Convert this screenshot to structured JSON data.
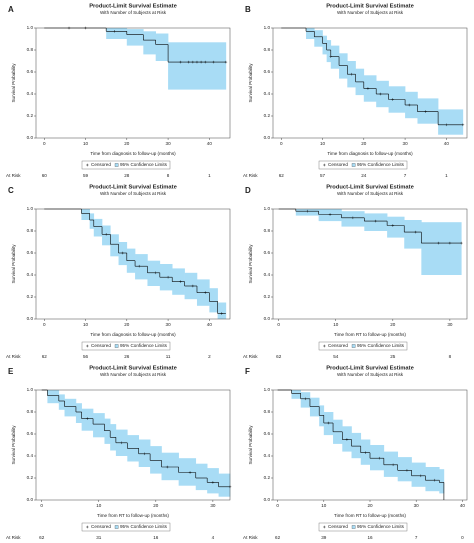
{
  "chart_data": [
    {
      "type": "km",
      "panel": "A",
      "title": "Product-Limit Survival Estimate",
      "subtitle": "With Number of Subjects at Risk",
      "x_label": "Time from diagnosis to follow-up (months)",
      "y_label": "Survival Probability",
      "legend": [
        "Censored",
        "95% Confidence Limits"
      ],
      "at_risk_label": "At Risk",
      "xlim": [
        -2,
        45
      ],
      "xticks": [
        0,
        10,
        20,
        30,
        40
      ],
      "ylim": [
        0,
        1
      ],
      "yticks": [
        {
          "value": 0,
          "label": "0.0"
        },
        {
          "value": 0.2,
          "label": "0.2"
        },
        {
          "value": 0.4,
          "label": "0.4"
        },
        {
          "value": 0.6,
          "label": "0.6"
        },
        {
          "value": 0.8,
          "label": "0.8"
        },
        {
          "value": 1,
          "label": "1.0"
        }
      ],
      "at_risk": [
        60,
        59,
        28,
        8,
        1
      ],
      "times": [
        0,
        15,
        20,
        24,
        27,
        30,
        44
      ],
      "survival": [
        1,
        0.97,
        0.94,
        0.89,
        0.85,
        0.69,
        0.69
      ],
      "lower": [
        1,
        0.9,
        0.84,
        0.76,
        0.7,
        0.44,
        0.44
      ],
      "upper": [
        1,
        1,
        0.99,
        0.97,
        0.95,
        0.87,
        0.87
      ],
      "censored_x": [
        6,
        10,
        17,
        33,
        35,
        36,
        37,
        38,
        39,
        41,
        44
      ],
      "line_color": "#000000",
      "band_color": "#a8dcf5"
    },
    {
      "type": "km",
      "panel": "B",
      "title": "Product-Limit Survival Estimate",
      "subtitle": "With Number of Subjects at Risk",
      "x_label": "Time from diagnosis to follow-up (months)",
      "y_label": "Survival Probability",
      "legend": [
        "Censored",
        "95% Confidence Limits"
      ],
      "at_risk_label": "At Risk",
      "xlim": [
        -2,
        45
      ],
      "xticks": [
        0,
        10,
        20,
        30,
        40
      ],
      "ylim": [
        0,
        1
      ],
      "yticks": [
        {
          "value": 0,
          "label": "0.0"
        },
        {
          "value": 0.2,
          "label": "0.2"
        },
        {
          "value": 0.4,
          "label": "0.4"
        },
        {
          "value": 0.6,
          "label": "0.6"
        },
        {
          "value": 0.8,
          "label": "0.8"
        },
        {
          "value": 1,
          "label": "1.0"
        }
      ],
      "at_risk": [
        62,
        57,
        24,
        7,
        1
      ],
      "times": [
        0,
        6,
        8,
        10,
        11,
        12,
        14,
        16,
        18,
        20,
        23,
        26,
        30,
        33,
        38,
        44
      ],
      "survival": [
        1,
        0.97,
        0.92,
        0.86,
        0.8,
        0.74,
        0.66,
        0.58,
        0.51,
        0.45,
        0.4,
        0.35,
        0.3,
        0.24,
        0.12,
        0.12
      ],
      "lower": [
        1,
        0.9,
        0.83,
        0.76,
        0.69,
        0.63,
        0.54,
        0.46,
        0.39,
        0.33,
        0.28,
        0.23,
        0.18,
        0.13,
        0.03,
        0.03
      ],
      "upper": [
        1,
        1,
        0.98,
        0.93,
        0.89,
        0.84,
        0.77,
        0.7,
        0.63,
        0.57,
        0.52,
        0.47,
        0.42,
        0.36,
        0.26,
        0.26
      ],
      "censored_x": [
        12,
        17,
        21,
        24,
        27,
        31,
        35,
        40,
        44
      ],
      "line_color": "#000000",
      "band_color": "#a8dcf5"
    },
    {
      "type": "km",
      "panel": "C",
      "title": "Product-Limit Survival Estimate",
      "subtitle": "With Number of Subjects at Risk",
      "x_label": "Time from diagnosis to follow-up (months)",
      "y_label": "Survival Probability",
      "legend": [
        "Censored",
        "95% Confidence Limits"
      ],
      "at_risk_label": "At Risk",
      "xlim": [
        -2,
        45
      ],
      "xticks": [
        0,
        10,
        20,
        30,
        40
      ],
      "ylim": [
        0,
        1
      ],
      "yticks": [
        {
          "value": 0,
          "label": "0.0"
        },
        {
          "value": 0.2,
          "label": "0.2"
        },
        {
          "value": 0.4,
          "label": "0.4"
        },
        {
          "value": 0.6,
          "label": "0.6"
        },
        {
          "value": 0.8,
          "label": "0.8"
        },
        {
          "value": 1,
          "label": "1.0"
        }
      ],
      "at_risk": [
        62,
        56,
        26,
        11,
        2
      ],
      "times": [
        0,
        9,
        11,
        12,
        14,
        16,
        18,
        20,
        22,
        25,
        28,
        31,
        34,
        37,
        40,
        42,
        44
      ],
      "survival": [
        1,
        0.96,
        0.9,
        0.84,
        0.77,
        0.68,
        0.6,
        0.53,
        0.48,
        0.42,
        0.38,
        0.34,
        0.3,
        0.24,
        0.16,
        0.05,
        0.05
      ],
      "lower": [
        1,
        0.9,
        0.82,
        0.75,
        0.67,
        0.57,
        0.49,
        0.42,
        0.36,
        0.3,
        0.26,
        0.22,
        0.18,
        0.12,
        0.06,
        0,
        0
      ],
      "upper": [
        1,
        1,
        0.96,
        0.91,
        0.85,
        0.77,
        0.7,
        0.64,
        0.59,
        0.53,
        0.5,
        0.46,
        0.42,
        0.36,
        0.28,
        0.15,
        0.15
      ],
      "censored_x": [
        15,
        19,
        23,
        27,
        30,
        33,
        36,
        39,
        43
      ],
      "line_color": "#000000",
      "band_color": "#a8dcf5"
    },
    {
      "type": "km",
      "panel": "D",
      "title": "Product-Limit Survival Estimate",
      "subtitle": "With Number of Subjects at Risk",
      "x_label": "Time from RT to follow-up (months)",
      "y_label": "Survival Probability",
      "legend": [
        "Censored",
        "95% Confidence Limits"
      ],
      "at_risk_label": "At Risk",
      "xlim": [
        -1,
        33
      ],
      "xticks": [
        0,
        10,
        20,
        30
      ],
      "ylim": [
        0,
        1
      ],
      "yticks": [
        {
          "value": 0,
          "label": "0.0"
        },
        {
          "value": 0.2,
          "label": "0.2"
        },
        {
          "value": 0.4,
          "label": "0.4"
        },
        {
          "value": 0.6,
          "label": "0.6"
        },
        {
          "value": 0.8,
          "label": "0.8"
        },
        {
          "value": 1,
          "label": "1.0"
        }
      ],
      "at_risk": [
        62,
        54,
        25,
        8
      ],
      "times": [
        0,
        3,
        7,
        11,
        15,
        19,
        22,
        25,
        32
      ],
      "survival": [
        1,
        0.98,
        0.95,
        0.92,
        0.89,
        0.85,
        0.79,
        0.69,
        0.69
      ],
      "lower": [
        1,
        0.94,
        0.89,
        0.84,
        0.8,
        0.74,
        0.64,
        0.4,
        0.4
      ],
      "upper": [
        1,
        1,
        1,
        0.98,
        0.96,
        0.93,
        0.9,
        0.88,
        0.88
      ],
      "censored_x": [
        5,
        9,
        13,
        17,
        20,
        24,
        28,
        30,
        32
      ],
      "line_color": "#000000",
      "band_color": "#a8dcf5"
    },
    {
      "type": "km",
      "panel": "E",
      "title": "Product-Limit Survival Estimate",
      "subtitle": "With Number of Subjects at Risk",
      "x_label": "Time from RT to follow-up (months)",
      "y_label": "Survival Probability",
      "legend": [
        "Censored",
        "95% Confidence Limits"
      ],
      "at_risk_label": "At Risk",
      "xlim": [
        -1,
        33
      ],
      "xticks": [
        0,
        10,
        20,
        30
      ],
      "ylim": [
        0,
        1
      ],
      "yticks": [
        {
          "value": 0,
          "label": "0.0"
        },
        {
          "value": 0.2,
          "label": "0.2"
        },
        {
          "value": 0.4,
          "label": "0.4"
        },
        {
          "value": 0.6,
          "label": "0.6"
        },
        {
          "value": 0.8,
          "label": "0.8"
        },
        {
          "value": 1,
          "label": "1.0"
        }
      ],
      "at_risk": [
        62,
        31,
        16,
        4
      ],
      "times": [
        0,
        1,
        3,
        4,
        6,
        7,
        9,
        11,
        12,
        13,
        15,
        17,
        19,
        21,
        24,
        27,
        29,
        31,
        33
      ],
      "survival": [
        1,
        0.95,
        0.9,
        0.85,
        0.8,
        0.74,
        0.69,
        0.63,
        0.57,
        0.52,
        0.47,
        0.42,
        0.36,
        0.3,
        0.25,
        0.2,
        0.16,
        0.12,
        0.12
      ],
      "lower": [
        1,
        0.88,
        0.82,
        0.76,
        0.7,
        0.63,
        0.57,
        0.51,
        0.45,
        0.4,
        0.35,
        0.3,
        0.24,
        0.18,
        0.13,
        0.09,
        0.06,
        0.03,
        0.03
      ],
      "upper": [
        1,
        1,
        0.96,
        0.92,
        0.88,
        0.83,
        0.79,
        0.74,
        0.69,
        0.64,
        0.59,
        0.55,
        0.49,
        0.43,
        0.38,
        0.33,
        0.29,
        0.24,
        0.24
      ],
      "censored_x": [
        8,
        14,
        18,
        22,
        26,
        30,
        33
      ],
      "line_color": "#000000",
      "band_color": "#a8dcf5"
    },
    {
      "type": "km",
      "panel": "F",
      "title": "Product-Limit Survival Estimate",
      "subtitle": "With Number of Subjects at Risk",
      "x_label": "Time from RT to follow-up (months)",
      "y_label": "Survival Probability",
      "legend": [
        "Censored",
        "95% Confidence Limits"
      ],
      "at_risk_label": "At Risk",
      "xlim": [
        -1,
        41
      ],
      "xticks": [
        0,
        10,
        20,
        30,
        40
      ],
      "ylim": [
        0,
        1
      ],
      "yticks": [
        {
          "value": 0,
          "label": "0.0"
        },
        {
          "value": 0.2,
          "label": "0.2"
        },
        {
          "value": 0.4,
          "label": "0.4"
        },
        {
          "value": 0.6,
          "label": "0.6"
        },
        {
          "value": 0.8,
          "label": "0.8"
        },
        {
          "value": 1,
          "label": "1.0"
        }
      ],
      "at_risk": [
        62,
        39,
        16,
        7,
        0
      ],
      "times": [
        0,
        3,
        5,
        7,
        9,
        10,
        12,
        14,
        16,
        18,
        20,
        23,
        26,
        29,
        32,
        35,
        36
      ],
      "survival": [
        1,
        0.97,
        0.92,
        0.85,
        0.77,
        0.7,
        0.62,
        0.55,
        0.49,
        0.43,
        0.38,
        0.32,
        0.27,
        0.22,
        0.18,
        0.16,
        0
      ],
      "lower": [
        1,
        0.92,
        0.84,
        0.76,
        0.67,
        0.59,
        0.51,
        0.44,
        0.38,
        0.32,
        0.27,
        0.21,
        0.17,
        0.12,
        0.08,
        0.06,
        0
      ],
      "upper": [
        1,
        1,
        0.98,
        0.93,
        0.86,
        0.8,
        0.73,
        0.67,
        0.61,
        0.55,
        0.5,
        0.44,
        0.39,
        0.34,
        0.3,
        0.28,
        0
      ],
      "censored_x": [
        6,
        11,
        15,
        19,
        22,
        25,
        28,
        31,
        34
      ],
      "line_color": "#000000",
      "band_color": "#a8dcf5"
    }
  ]
}
